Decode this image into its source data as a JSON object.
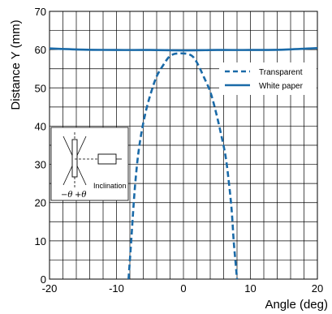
{
  "chart_data": {
    "type": "line",
    "title": "",
    "xlabel": "Angle (deg)",
    "ylabel": "Distance Y (mm)",
    "xlim": [
      -20,
      20
    ],
    "ylim": [
      0,
      70
    ],
    "x_ticks": [
      -20,
      -10,
      0,
      10,
      20
    ],
    "y_ticks": [
      0,
      10,
      20,
      30,
      40,
      50,
      60,
      70
    ],
    "x_tick_labels": [
      "-20",
      "-10",
      "0",
      "10",
      "20"
    ],
    "y_tick_labels": [
      "0",
      "10",
      "20",
      "30",
      "40",
      "50",
      "60",
      "70"
    ],
    "grid": true,
    "legend_position": "top-right",
    "series": [
      {
        "name": "Transparent",
        "style": "dashed",
        "color": "#1a6aa8",
        "x": [
          -8.2,
          -7.8,
          -7.5,
          -7.2,
          -6.8,
          -6.3,
          -5.6,
          -4.8,
          -4.0,
          -3.0,
          -2.2,
          -1.5,
          -0.8,
          0,
          0.8,
          1.5,
          2.2,
          3.0,
          4.0,
          4.8,
          5.6,
          6.3,
          6.8,
          7.2,
          7.5,
          7.8,
          8.0
        ],
        "y": [
          0,
          10,
          18,
          25,
          32,
          38,
          44,
          49,
          53,
          56,
          58,
          58.8,
          59,
          59,
          58.8,
          58,
          56,
          53,
          49,
          44,
          38,
          32,
          25,
          18,
          10,
          4,
          0
        ]
      },
      {
        "name": "White paper",
        "style": "solid",
        "color": "#1a6aa8",
        "x": [
          -20,
          -15,
          -10,
          -5,
          0,
          5,
          10,
          15,
          20
        ],
        "y": [
          60.3,
          60,
          59.9,
          59.9,
          59.8,
          59.9,
          59.9,
          60,
          60.4
        ]
      }
    ]
  },
  "inset": {
    "theta_labels": [
      "−θ",
      "+θ"
    ],
    "caption": "Inclination"
  }
}
